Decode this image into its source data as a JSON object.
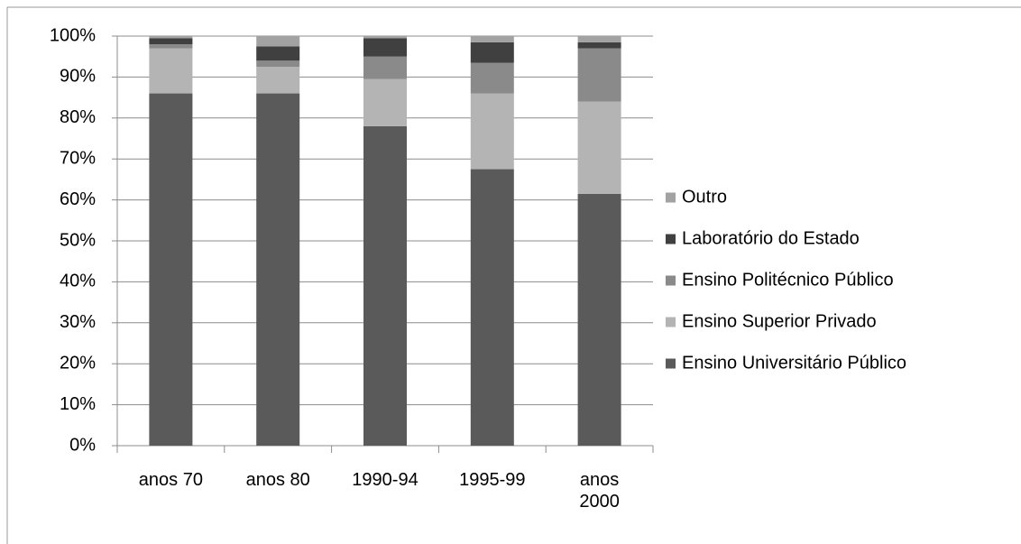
{
  "chart_data": {
    "type": "stacked_bar",
    "categories": [
      "anos 70",
      "anos 80",
      "1990-94",
      "1995-99",
      "anos 2000"
    ],
    "series": [
      {
        "name": "Ensino Universitário Público",
        "color": "#5a5a5a",
        "values": [
          86,
          86,
          78,
          67.5,
          61.5
        ]
      },
      {
        "name": "Ensino Superior Privado",
        "color": "#b4b4b4",
        "values": [
          11,
          6.5,
          11.5,
          18.5,
          22.5
        ]
      },
      {
        "name": "Ensino Politécnico Público",
        "color": "#8a8a8a",
        "values": [
          1,
          1.5,
          5.5,
          7.5,
          13
        ]
      },
      {
        "name": "Laboratório do Estado",
        "color": "#404040",
        "values": [
          1.5,
          3.5,
          4.5,
          5,
          1.5
        ]
      },
      {
        "name": "Outro",
        "color": "#a2a2a2",
        "values": [
          0.5,
          2.5,
          0.5,
          1.5,
          1.5
        ]
      }
    ],
    "ylim": [
      0,
      100
    ],
    "yticks": [
      {
        "value": 0,
        "label": "0%"
      },
      {
        "value": 10,
        "label": "10%"
      },
      {
        "value": 20,
        "label": "20%"
      },
      {
        "value": 30,
        "label": "30%"
      },
      {
        "value": 40,
        "label": "40%"
      },
      {
        "value": 50,
        "label": "50%"
      },
      {
        "value": 60,
        "label": "60%"
      },
      {
        "value": 70,
        "label": "70%"
      },
      {
        "value": 80,
        "label": "80%"
      },
      {
        "value": 90,
        "label": "90%"
      },
      {
        "value": 100,
        "label": "100%"
      }
    ],
    "grid": true,
    "legend": "right"
  }
}
